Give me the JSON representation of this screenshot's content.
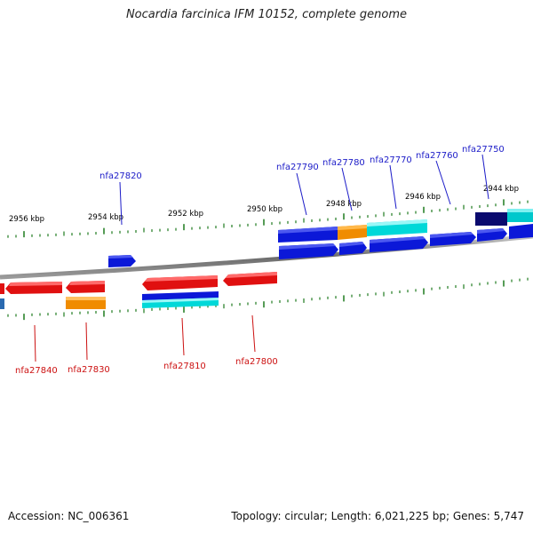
{
  "title": "Nocardia farcinica IFM 10152, complete genome",
  "footer": {
    "accession": "Accession: NC_006361",
    "summary": "Topology: circular; Length: 6,021,225 bp; Genes: 5,747"
  },
  "colors": {
    "background": "#ffffff",
    "backbone": "#7a7a7a",
    "tick": "#1e7a1e",
    "tick_label": "#000000",
    "gene_label_forward": "#1c1cc8",
    "gene_label_reverse": "#cc1111",
    "gene_blue": "#0b18d8",
    "gene_red": "#e01010",
    "gene_orange": "#f08c00",
    "gene_cyan": "#00d8d8",
    "gene_navy": "#0a0a6e"
  },
  "scale_labels": [
    "2956 kbp",
    "2954 kbp",
    "2952 kbp",
    "2950 kbp",
    "2948 kbp",
    "2946 kbp",
    "2944 kbp"
  ],
  "gene_labels_forward": [
    "nfa27820",
    "nfa27790",
    "nfa27780",
    "nfa27770",
    "nfa27760",
    "nfa27750"
  ],
  "gene_labels_reverse": [
    "nfa27840",
    "nfa27830",
    "nfa27810",
    "nfa27800"
  ]
}
